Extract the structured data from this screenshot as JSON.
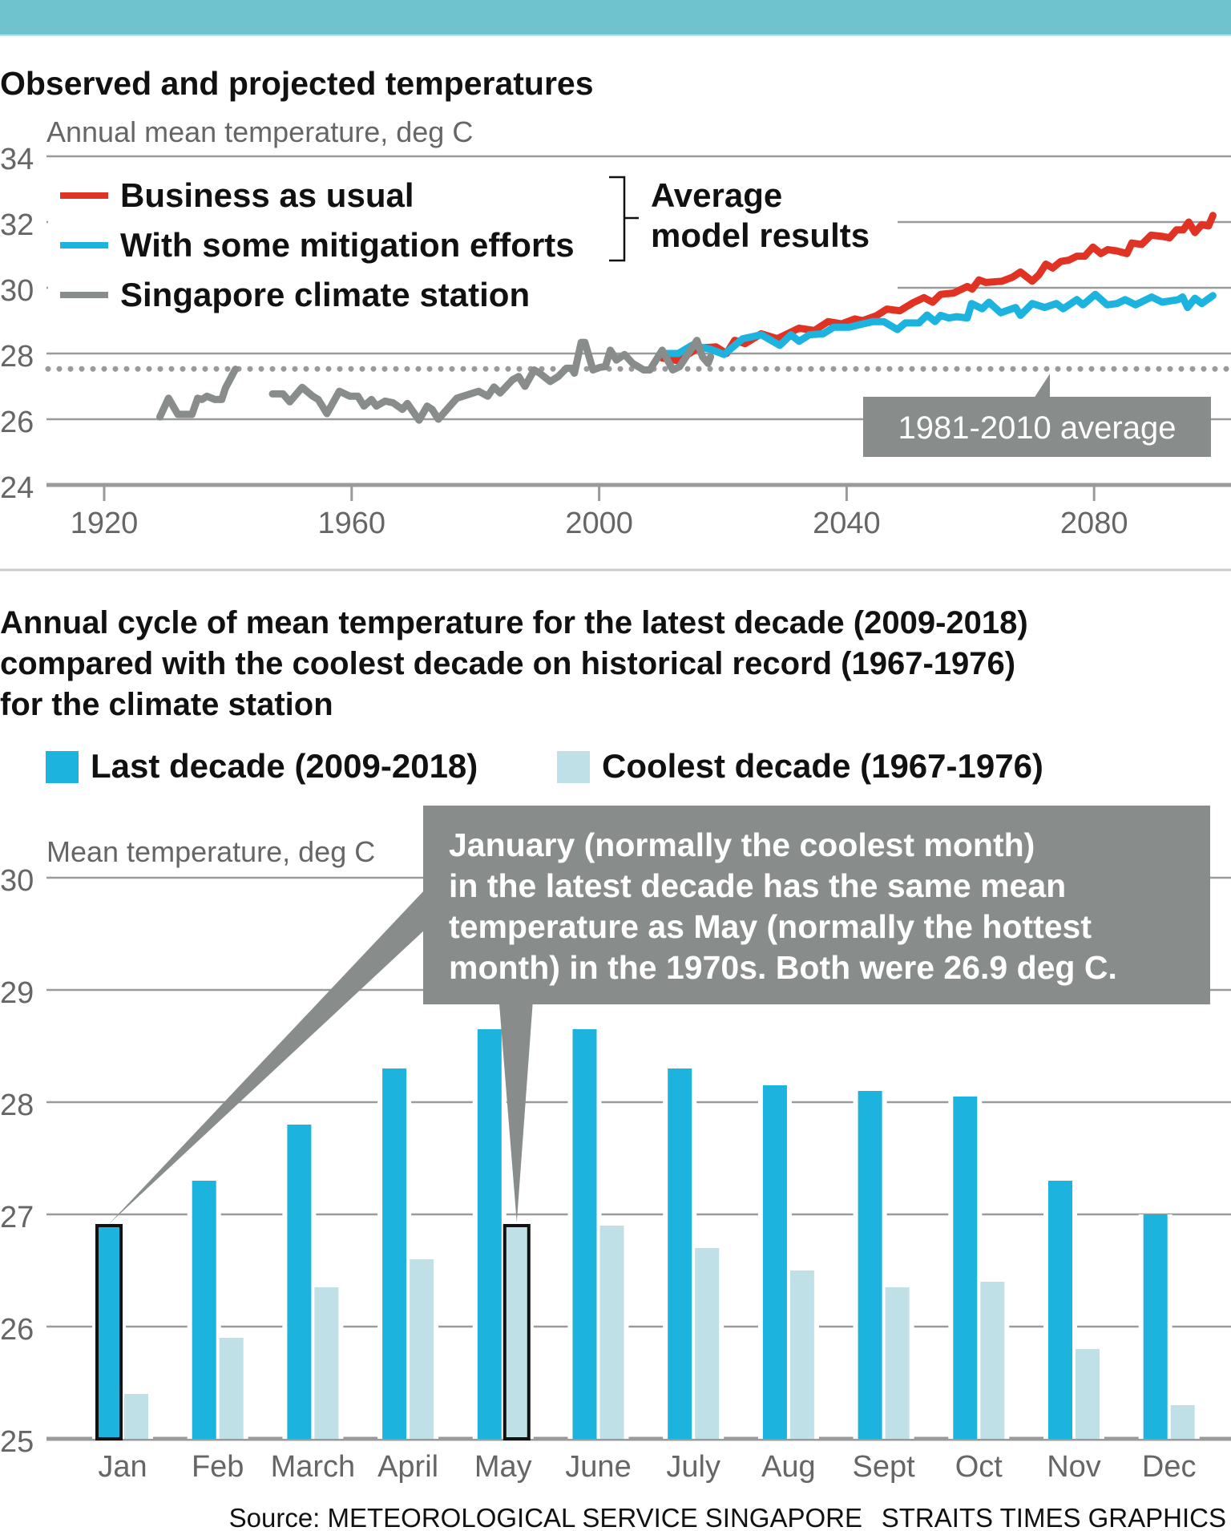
{
  "header": {
    "band_color": "#6EC3CF"
  },
  "colors": {
    "business_as_usual": "#E03323",
    "mitigation": "#1CB3DF",
    "station": "#888D8B",
    "last_decade": "#1CB3DF",
    "coolest_decade": "#BFE0E7",
    "annotation_bg": "#888D8B",
    "gridline": "#9a9a9a"
  },
  "chart_data": [
    {
      "type": "line",
      "title": "Observed and projected temperatures",
      "ylabel": "Annual mean temperature, deg C",
      "xlabel": "",
      "ylim": [
        24,
        34
      ],
      "xlim": [
        1910,
        2101
      ],
      "yticks": [
        "24",
        "26",
        "28",
        "30",
        "32",
        "34"
      ],
      "xticks": [
        "1920",
        "1960",
        "2000",
        "2040",
        "2080"
      ],
      "grid": true,
      "legend": {
        "placement": "top-left",
        "entries": [
          "Business as usual",
          "With some mitigation efforts",
          "Singapore climate station"
        ],
        "bracket_label": [
          "Average",
          "model results"
        ]
      },
      "reference_line": {
        "label": "1981-2010 average",
        "value": 27.53
      },
      "series": [
        {
          "name": "Singapore climate station",
          "segments": [
            [
              [
                1929,
                26.07
              ],
              [
                1930.4,
                26.64
              ],
              [
                1931.9,
                26.15
              ],
              [
                1934.2,
                26.15
              ],
              [
                1935.1,
                26.64
              ],
              [
                1935.8,
                26.6
              ],
              [
                1936.6,
                26.7
              ],
              [
                1937.9,
                26.6
              ],
              [
                1939,
                26.6
              ],
              [
                1939.6,
                26.95
              ],
              [
                1941.2,
                27.52
              ]
            ],
            [
              [
                1947.2,
                26.77
              ],
              [
                1948.9,
                26.77
              ],
              [
                1950,
                26.53
              ],
              [
                1952,
                26.97
              ],
              [
                1953.7,
                26.7
              ],
              [
                1954.6,
                26.6
              ],
              [
                1956,
                26.17
              ],
              [
                1958,
                26.85
              ],
              [
                1959.7,
                26.7
              ],
              [
                1961,
                26.7
              ],
              [
                1962,
                26.4
              ],
              [
                1963.2,
                26.6
              ],
              [
                1964,
                26.4
              ],
              [
                1965.4,
                26.55
              ],
              [
                1966.7,
                26.5
              ],
              [
                1968.2,
                26.3
              ],
              [
                1969,
                26.48
              ],
              [
                1970.9,
                25.97
              ],
              [
                1972.2,
                26.4
              ],
              [
                1973,
                26.3
              ],
              [
                1974,
                26.0
              ],
              [
                1977,
                26.64
              ],
              [
                1980.5,
                26.85
              ],
              [
                1982,
                26.7
              ],
              [
                1983,
                26.98
              ],
              [
                1984,
                26.8
              ],
              [
                1986,
                27.2
              ],
              [
                1987,
                27.3
              ],
              [
                1988,
                27.0
              ],
              [
                1989.5,
                27.5
              ],
              [
                1990.4,
                27.4
              ],
              [
                1992.1,
                27.15
              ],
              [
                1993.4,
                27.3
              ],
              [
                1994.7,
                27.55
              ],
              [
                1995.5,
                27.55
              ],
              [
                1996,
                27.4
              ],
              [
                1997.1,
                28.34
              ],
              [
                1997.7,
                28.34
              ],
              [
                1999,
                27.5
              ],
              [
                2000.2,
                27.58
              ],
              [
                2001,
                27.6
              ],
              [
                2001.8,
                28.1
              ],
              [
                2002.8,
                27.8
              ],
              [
                2004.1,
                27.97
              ],
              [
                2005.4,
                27.7
              ],
              [
                2007.2,
                27.5
              ],
              [
                2008.2,
                27.5
              ],
              [
                2010.2,
                28.1
              ],
              [
                2011.9,
                27.5
              ],
              [
                2013,
                27.6
              ],
              [
                2015.8,
                28.4
              ],
              [
                2016.7,
                27.9
              ],
              [
                2017.6,
                27.7
              ],
              [
                2018,
                27.9
              ]
            ]
          ]
        },
        {
          "name": "Business as usual",
          "points": [
            [
              2010.2,
              27.86
            ],
            [
              2012.8,
              27.78
            ],
            [
              2015.9,
              28.16
            ],
            [
              2018.9,
              28.2
            ],
            [
              2020.6,
              28.0
            ],
            [
              2021.9,
              28.4
            ],
            [
              2023.6,
              28.3
            ],
            [
              2026.2,
              28.6
            ],
            [
              2028.8,
              28.45
            ],
            [
              2032.3,
              28.77
            ],
            [
              2034.8,
              28.7
            ],
            [
              2037,
              28.97
            ],
            [
              2039.2,
              28.9
            ],
            [
              2041.3,
              29.05
            ],
            [
              2042.6,
              29.0
            ],
            [
              2044.8,
              29.15
            ],
            [
              2046.5,
              29.35
            ],
            [
              2048.6,
              29.3
            ],
            [
              2050.8,
              29.55
            ],
            [
              2052.5,
              29.7
            ],
            [
              2053.9,
              29.56
            ],
            [
              2055.2,
              29.8
            ],
            [
              2057.3,
              29.84
            ],
            [
              2059.5,
              30.04
            ],
            [
              2060.3,
              29.96
            ],
            [
              2061.4,
              30.24
            ],
            [
              2062.5,
              30.16
            ],
            [
              2065.1,
              30.2
            ],
            [
              2066.8,
              30.32
            ],
            [
              2068.1,
              30.48
            ],
            [
              2070,
              30.2
            ],
            [
              2071.1,
              30.4
            ],
            [
              2072.2,
              30.72
            ],
            [
              2073.3,
              30.6
            ],
            [
              2074.6,
              30.8
            ],
            [
              2075.9,
              30.84
            ],
            [
              2077.2,
              30.96
            ],
            [
              2078.5,
              30.96
            ],
            [
              2079.8,
              31.24
            ],
            [
              2081.1,
              31.04
            ],
            [
              2082.2,
              31.16
            ],
            [
              2083.7,
              31.12
            ],
            [
              2085.3,
              31.04
            ],
            [
              2086.1,
              31.36
            ],
            [
              2087.7,
              31.32
            ],
            [
              2089.2,
              31.6
            ],
            [
              2091.1,
              31.56
            ],
            [
              2092.2,
              31.52
            ],
            [
              2093.3,
              31.76
            ],
            [
              2094.4,
              31.76
            ],
            [
              2095.3,
              32.0
            ],
            [
              2096.3,
              31.68
            ],
            [
              2097.4,
              31.92
            ],
            [
              2098.5,
              31.88
            ],
            [
              2099.2,
              32.2
            ]
          ]
        },
        {
          "name": "With some mitigation efforts",
          "points": [
            [
              2010.2,
              28.0
            ],
            [
              2012.8,
              28.0
            ],
            [
              2015,
              28.25
            ],
            [
              2018,
              28.13
            ],
            [
              2020.2,
              27.97
            ],
            [
              2023.2,
              28.45
            ],
            [
              2026.2,
              28.57
            ],
            [
              2029.2,
              28.25
            ],
            [
              2031,
              28.57
            ],
            [
              2032.3,
              28.37
            ],
            [
              2034,
              28.57
            ],
            [
              2036.2,
              28.6
            ],
            [
              2037.9,
              28.8
            ],
            [
              2040.4,
              28.8
            ],
            [
              2042.6,
              28.9
            ],
            [
              2044.3,
              28.97
            ],
            [
              2046,
              28.97
            ],
            [
              2048.2,
              28.73
            ],
            [
              2049.5,
              28.93
            ],
            [
              2051.7,
              28.93
            ],
            [
              2053,
              29.17
            ],
            [
              2054.3,
              28.97
            ],
            [
              2055.2,
              29.16
            ],
            [
              2056.5,
              29.08
            ],
            [
              2057.8,
              29.12
            ],
            [
              2059.5,
              29.08
            ],
            [
              2060.2,
              29.52
            ],
            [
              2061.9,
              29.36
            ],
            [
              2063,
              29.56
            ],
            [
              2064.9,
              29.24
            ],
            [
              2067.3,
              29.4
            ],
            [
              2068.1,
              29.16
            ],
            [
              2070,
              29.52
            ],
            [
              2072,
              29.4
            ],
            [
              2073.9,
              29.52
            ],
            [
              2075,
              29.36
            ],
            [
              2077.2,
              29.64
            ],
            [
              2078.2,
              29.48
            ],
            [
              2080.2,
              29.8
            ],
            [
              2082.1,
              29.48
            ],
            [
              2083.7,
              29.52
            ],
            [
              2085,
              29.64
            ],
            [
              2086.7,
              29.48
            ],
            [
              2089.3,
              29.72
            ],
            [
              2091,
              29.56
            ],
            [
              2093.6,
              29.64
            ],
            [
              2094.3,
              29.72
            ],
            [
              2095.1,
              29.4
            ],
            [
              2096.3,
              29.68
            ],
            [
              2097.4,
              29.52
            ],
            [
              2099.2,
              29.76
            ]
          ]
        }
      ]
    },
    {
      "type": "bar",
      "title": [
        "Annual cycle of mean temperature for the latest decade (2009-2018)",
        "compared with the coolest decade on historical record (1967-1976)",
        "for the climate station"
      ],
      "ylabel": "Mean temperature, deg C",
      "xlabel": "",
      "ylim": [
        25,
        30
      ],
      "yticks": [
        "25",
        "26",
        "27",
        "28",
        "29",
        "30"
      ],
      "grid": true,
      "legend": {
        "placement": "top-left",
        "entries": [
          "Last decade (2009-2018)",
          "Coolest decade (1967-1976)"
        ]
      },
      "categories": [
        "Jan",
        "Feb",
        "March",
        "April",
        "May",
        "June",
        "July",
        "Aug",
        "Sept",
        "Oct",
        "Nov",
        "Dec"
      ],
      "series": [
        {
          "name": "Last decade (2009-2018)",
          "values": [
            26.9,
            27.3,
            27.8,
            28.3,
            28.65,
            28.65,
            28.3,
            28.15,
            28.1,
            28.05,
            27.3,
            27.0
          ]
        },
        {
          "name": "Coolest decade (1967-1976)",
          "values": [
            25.4,
            25.9,
            26.35,
            26.6,
            26.9,
            26.9,
            26.7,
            26.5,
            26.35,
            26.4,
            25.8,
            25.3
          ]
        }
      ],
      "highlighted": [
        {
          "series": 0,
          "category": "Jan"
        },
        {
          "series": 1,
          "category": "May"
        }
      ],
      "annotation": [
        "January (normally the coolest month)",
        "in the latest decade has the same mean",
        "temperature as May (normally the hottest",
        "month) in the 1970s. Both were 26.9 deg C."
      ]
    }
  ],
  "footer": {
    "source": "Source: METEOROLOGICAL SERVICE SINGAPORE",
    "credit": "STRAITS TIMES GRAPHICS"
  }
}
